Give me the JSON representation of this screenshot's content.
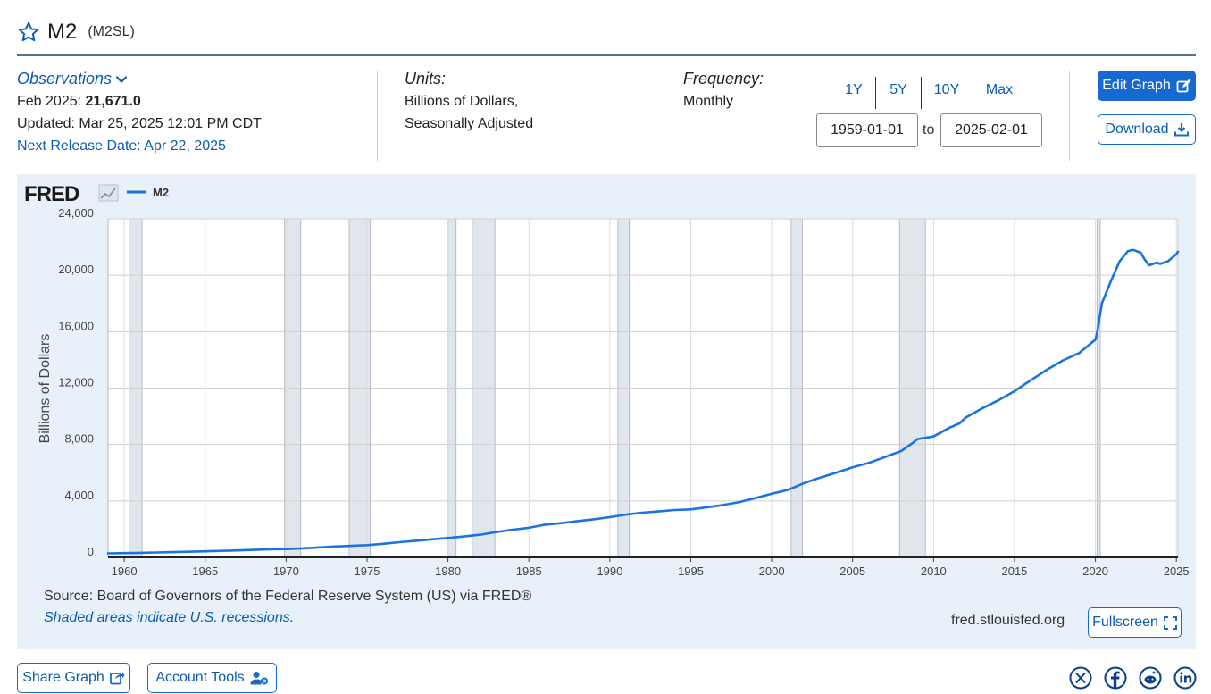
{
  "header": {
    "title": "M2",
    "series_id": "(M2SL)"
  },
  "info": {
    "observations_label": "Observations",
    "latest_period": "Feb 2025:",
    "latest_value": "21,671.0",
    "updated": "Updated: Mar 25, 2025 12:01 PM CDT",
    "next_release": "Next Release Date: Apr 22, 2025",
    "units_label": "Units:",
    "units_line1": "Billions of Dollars,",
    "units_line2": "Seasonally Adjusted",
    "frequency_label": "Frequency:",
    "frequency_value": "Monthly"
  },
  "range": {
    "buttons": [
      "1Y",
      "5Y",
      "10Y",
      "Max"
    ],
    "start_date": "1959-01-01",
    "to_label": "to",
    "end_date": "2025-02-01"
  },
  "actions": {
    "edit_graph": "Edit Graph",
    "download": "Download",
    "fullscreen": "Fullscreen",
    "share_graph": "Share Graph",
    "account_tools": "Account Tools"
  },
  "footer": {
    "source": "Source: Board of Governors of the Federal Reserve System (US) via FRED®",
    "recession_note": "Shaded areas indicate U.S. recessions.",
    "site": "fred.stlouisfed.org"
  },
  "logo_text": "FRED",
  "colors": {
    "line": "#1a73e0",
    "accent": "#1769d2",
    "recession": "#e1e6ec",
    "panel": "#e8f1fa"
  },
  "icons": {
    "favorite": "star-icon",
    "observations": "chevron-down-icon",
    "edit": "edit-icon",
    "download": "download-icon",
    "fullscreen": "fullscreen-icon",
    "share": "share-icon",
    "account": "account-gear-icon",
    "social": [
      "x-icon",
      "facebook-icon",
      "reddit-icon",
      "linkedin-icon"
    ]
  },
  "chart_data": {
    "type": "line",
    "legend": "M2",
    "legend_position": "top-left",
    "ylabel": "Billions of Dollars",
    "xlabel": "",
    "xlim": [
      1959,
      2025.1
    ],
    "ylim": [
      0,
      24000
    ],
    "x_ticks": [
      1960,
      1965,
      1970,
      1975,
      1980,
      1985,
      1990,
      1995,
      2000,
      2005,
      2010,
      2015,
      2020,
      2025
    ],
    "y_ticks": [
      0,
      4000,
      8000,
      12000,
      16000,
      20000,
      24000
    ],
    "y_tick_labels": [
      "0",
      "4,000",
      "8,000",
      "12,000",
      "16,000",
      "20,000",
      "24,000"
    ],
    "grid": true,
    "recessions": [
      [
        1960.3,
        1961.1
      ],
      [
        1969.9,
        1970.9
      ],
      [
        1973.9,
        1975.2
      ],
      [
        1980.0,
        1980.5
      ],
      [
        1981.5,
        1982.9
      ],
      [
        1990.5,
        1991.2
      ],
      [
        2001.2,
        2001.9
      ],
      [
        2007.9,
        2009.5
      ],
      [
        2020.1,
        2020.3
      ]
    ],
    "series": [
      {
        "name": "M2",
        "x": [
          1959,
          1960,
          1961,
          1962,
          1963,
          1964,
          1965,
          1966,
          1967,
          1968,
          1969,
          1970,
          1971,
          1972,
          1973,
          1974,
          1975,
          1976,
          1977,
          1978,
          1979,
          1980,
          1981,
          1982,
          1983,
          1984,
          1985,
          1986,
          1987,
          1988,
          1989,
          1990,
          1991,
          1992,
          1993,
          1994,
          1995,
          1996,
          1997,
          1998,
          1999,
          2000,
          2001,
          2002,
          2003,
          2004,
          2005,
          2006,
          2007,
          2008,
          2008.7,
          2009,
          2010,
          2011,
          2011.6,
          2012,
          2013,
          2014,
          2015,
          2016,
          2017,
          2018,
          2019,
          2020,
          2020.1,
          2020.4,
          2021,
          2021.5,
          2022,
          2022.3,
          2022.8,
          2023,
          2023.3,
          2023.8,
          2024,
          2024.5,
          2025,
          2025.1
        ],
        "values": [
          287,
          304,
          321,
          346,
          372,
          402,
          432,
          460,
          491,
          533,
          573,
          590,
          639,
          706,
          771,
          818,
          867,
          965,
          1076,
          1181,
          1282,
          1372,
          1481,
          1606,
          1799,
          1962,
          2095,
          2316,
          2427,
          2572,
          2697,
          2851,
          3036,
          3167,
          3257,
          3355,
          3398,
          3553,
          3712,
          3918,
          4205,
          4509,
          4782,
          5262,
          5655,
          6008,
          6375,
          6693,
          7111,
          7536,
          8100,
          8386,
          8567,
          9199,
          9500,
          9916,
          10563,
          11134,
          11780,
          12553,
          13295,
          13965,
          14484,
          15440,
          15900,
          18000,
          19700,
          21000,
          21700,
          21800,
          21600,
          21200,
          20700,
          20900,
          20800,
          21000,
          21500,
          21671
        ]
      }
    ]
  }
}
